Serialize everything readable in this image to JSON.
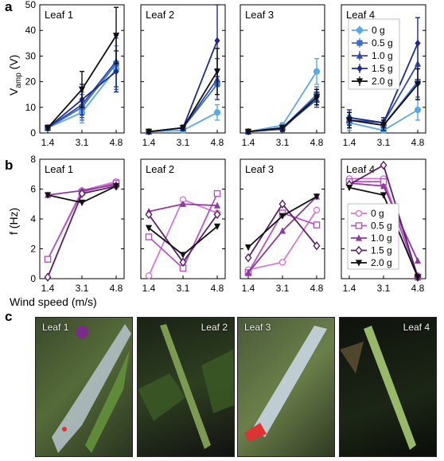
{
  "panel_labels": {
    "a": "a",
    "b": "b",
    "c": "c"
  },
  "legend": [
    "0 g",
    "0.5 g",
    "1.0 g",
    "1.5 g",
    "2.0 g"
  ],
  "colors": {
    "a": [
      "#5aa9e6",
      "#3f6fc4",
      "#3349a8",
      "#1f2a8a",
      "#111111"
    ],
    "b": [
      "#d277d6",
      "#b555c0",
      "#8e3a9e",
      "#5a1f66",
      "#111111"
    ]
  },
  "chart_data": [
    {
      "type": "line",
      "panel": "a",
      "ylabel": "V_amp (V)",
      "ylabel_main": "V",
      "ylabel_sub": "amp",
      "ylabel_unit": " (V)",
      "ylim": [
        0,
        50
      ],
      "yticks": [
        0,
        10,
        20,
        30,
        40,
        50
      ],
      "categories": [
        "1.4",
        "3.1",
        "4.8"
      ],
      "subplots": [
        {
          "title": "Leaf 1",
          "series": [
            {
              "name": "0 g",
              "values": [
                2,
                8,
                25
              ],
              "err": [
                1,
                4,
                9
              ]
            },
            {
              "name": "0.5 g",
              "values": [
                2,
                10,
                27
              ],
              "err": [
                1,
                5,
                10
              ]
            },
            {
              "name": "1.0 g",
              "values": [
                2,
                11,
                28
              ],
              "err": [
                1,
                5,
                10
              ]
            },
            {
              "name": "1.5 g",
              "values": [
                2,
                13,
                24
              ],
              "err": [
                1,
                6,
                8
              ]
            },
            {
              "name": "2.0 g",
              "values": [
                2,
                17,
                38
              ],
              "err": [
                1,
                7,
                11
              ]
            }
          ]
        },
        {
          "title": "Leaf 2",
          "series": [
            {
              "name": "0 g",
              "values": [
                0.5,
                1,
                8
              ],
              "err": [
                0.5,
                1,
                3
              ]
            },
            {
              "name": "0.5 g",
              "values": [
                0.5,
                2,
                19
              ],
              "err": [
                0.5,
                1,
                6
              ]
            },
            {
              "name": "1.0 g",
              "values": [
                0.5,
                2,
                21
              ],
              "err": [
                0.5,
                1,
                8
              ]
            },
            {
              "name": "1.5 g",
              "values": [
                0.5,
                2,
                36
              ],
              "err": [
                0.5,
                1,
                14
              ]
            },
            {
              "name": "2.0 g",
              "values": [
                0.5,
                2,
                24
              ],
              "err": [
                0.5,
                1,
                9
              ]
            }
          ]
        },
        {
          "title": "Leaf 3",
          "series": [
            {
              "name": "0 g",
              "values": [
                0.5,
                3,
                24
              ],
              "err": [
                0.5,
                1,
                5
              ]
            },
            {
              "name": "0.5 g",
              "values": [
                0.5,
                2,
                15
              ],
              "err": [
                0.5,
                1,
                3
              ]
            },
            {
              "name": "1.0 g",
              "values": [
                0.5,
                2,
                13
              ],
              "err": [
                0.5,
                1,
                3
              ]
            },
            {
              "name": "1.5 g",
              "values": [
                0.5,
                1.5,
                14
              ],
              "err": [
                0.5,
                1,
                3
              ]
            },
            {
              "name": "2.0 g",
              "values": [
                0.5,
                2,
                14
              ],
              "err": [
                0.5,
                1,
                3
              ]
            }
          ]
        },
        {
          "title": "Leaf 4",
          "series": [
            {
              "name": "0 g",
              "values": [
                4,
                1,
                9
              ],
              "err": [
                3,
                2,
                4
              ]
            },
            {
              "name": "0.5 g",
              "values": [
                5,
                3,
                20
              ],
              "err": [
                3,
                2,
                6
              ]
            },
            {
              "name": "1.0 g",
              "values": [
                5,
                4,
                27
              ],
              "err": [
                3,
                2,
                8
              ]
            },
            {
              "name": "1.5 g",
              "values": [
                6,
                4,
                35
              ],
              "err": [
                3,
                2,
                10
              ]
            },
            {
              "name": "2.0 g",
              "values": [
                5,
                3,
                19
              ],
              "err": [
                3,
                2,
                6
              ]
            }
          ]
        }
      ]
    },
    {
      "type": "line",
      "panel": "b",
      "ylabel": "f (Hz)",
      "xlabel": "Wind speed (m/s)",
      "ylim": [
        0,
        8
      ],
      "yticks": [
        0,
        2,
        4,
        6,
        8
      ],
      "categories": [
        "1.4",
        "3.1",
        "4.8"
      ],
      "subplots": [
        {
          "title": "Leaf 1",
          "series": [
            {
              "name": "0 g",
              "values": [
                1.3,
                5.9,
                6.5
              ]
            },
            {
              "name": "0.5 g",
              "values": [
                1.3,
                5.8,
                6.4
              ]
            },
            {
              "name": "1.0 g",
              "values": [
                5.6,
                5.9,
                6.3
              ]
            },
            {
              "name": "1.5 g",
              "values": [
                0.1,
                5.7,
                6.2
              ]
            },
            {
              "name": "2.0 g",
              "values": [
                5.6,
                5.1,
                6.2
              ]
            }
          ]
        },
        {
          "title": "Leaf 2",
          "series": [
            {
              "name": "0 g",
              "values": [
                0.2,
                5.3,
                4.4
              ]
            },
            {
              "name": "0.5 g",
              "values": [
                2.8,
                0.7,
                5.7
              ]
            },
            {
              "name": "1.0 g",
              "values": [
                4.5,
                5.0,
                4.9
              ]
            },
            {
              "name": "1.5 g",
              "values": [
                4.3,
                1.1,
                4.3
              ]
            },
            {
              "name": "2.0 g",
              "values": [
                3.4,
                1.6,
                3.5
              ]
            }
          ]
        },
        {
          "title": "Leaf 3",
          "series": [
            {
              "name": "0 g",
              "values": [
                0.6,
                1.1,
                4.6
              ]
            },
            {
              "name": "0.5 g",
              "values": [
                0.4,
                4.4,
                3.6
              ]
            },
            {
              "name": "1.0 g",
              "values": [
                0.4,
                3.2,
                5.5
              ]
            },
            {
              "name": "1.5 g",
              "values": [
                1.4,
                5.0,
                2.2
              ]
            },
            {
              "name": "2.0 g",
              "values": [
                2.1,
                4.2,
                5.5
              ]
            }
          ]
        },
        {
          "title": "Leaf 4",
          "series": [
            {
              "name": "0 g",
              "values": [
                6.7,
                6.7,
                0.2
              ]
            },
            {
              "name": "0.5 g",
              "values": [
                6.5,
                6.5,
                0.1
              ]
            },
            {
              "name": "1.0 g",
              "values": [
                6.4,
                6.2,
                1.2
              ]
            },
            {
              "name": "1.5 g",
              "values": [
                6.3,
                7.6,
                0.1
              ]
            },
            {
              "name": "2.0 g",
              "values": [
                6.1,
                5.6,
                0.1
              ]
            }
          ]
        }
      ]
    }
  ],
  "photos": [
    {
      "title": "Leaf 1"
    },
    {
      "title": "Leaf 2"
    },
    {
      "title": "Leaf 3"
    },
    {
      "title": "Leaf 4"
    }
  ]
}
